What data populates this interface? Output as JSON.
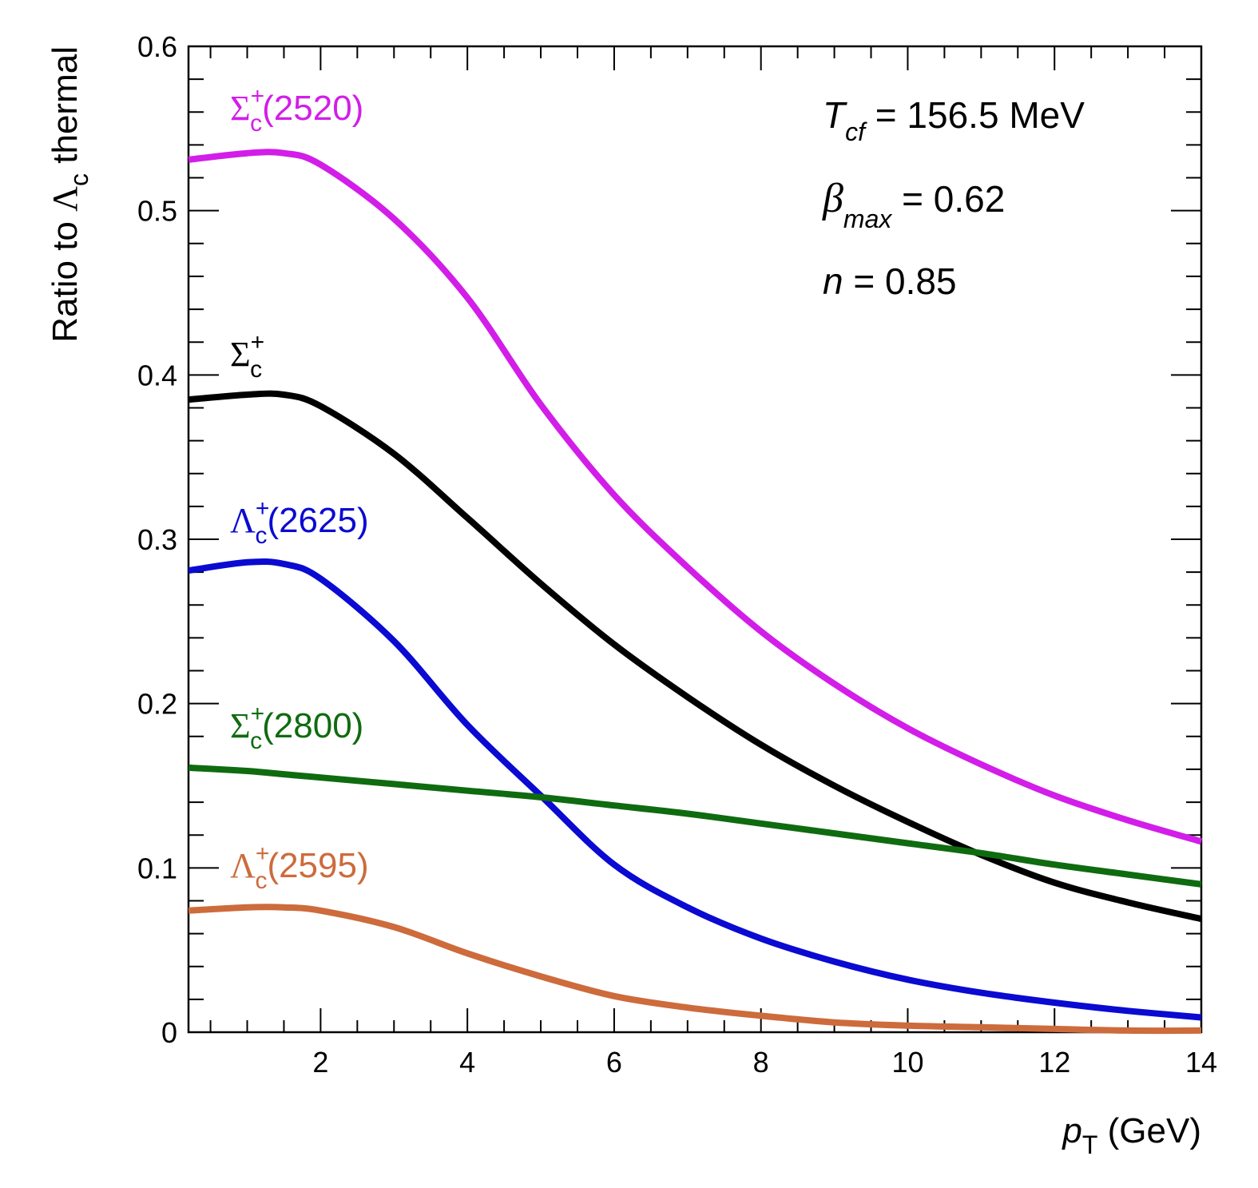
{
  "chart_data": {
    "type": "line",
    "xlabel_var": "p",
    "xlabel_sub": "T",
    "xlabel_unit": "(GeV)",
    "ylabel_text": "Ratio to ",
    "ylabel_symbol": "Λ",
    "ylabel_sub": "c",
    "ylabel_tail": " thermal",
    "xlim": [
      0.2,
      14
    ],
    "ylim": [
      0,
      0.6
    ],
    "x_ticks": [
      2,
      4,
      6,
      8,
      10,
      12,
      14
    ],
    "x_tick_labels": [
      "2",
      "4",
      "6",
      "8",
      "10",
      "12",
      "14"
    ],
    "y_ticks": [
      0,
      0.1,
      0.2,
      0.3,
      0.4,
      0.5,
      0.6
    ],
    "y_tick_labels": [
      "0",
      "0.1",
      "0.2",
      "0.3",
      "0.4",
      "0.5",
      "0.6"
    ],
    "grid": false,
    "legend": "labels placed beside curves at left",
    "parameters": [
      {
        "symbol": "T",
        "sub": "cf",
        "text": " = 156.5 MeV"
      },
      {
        "symbol": "β",
        "sub": "max",
        "text": " = 0.62"
      },
      {
        "symbol": "n",
        "sub": "",
        "text": " = 0.85"
      }
    ],
    "x": [
      0.2,
      1,
      1.5,
      2,
      3,
      4,
      5,
      6,
      7,
      8,
      9,
      10,
      11,
      12,
      13,
      14
    ],
    "series": [
      {
        "name": "Σ",
        "sub": "c",
        "sup": "+",
        "suffix": "(2520)",
        "color": "#d21ee8",
        "values": [
          0.531,
          0.535,
          0.535,
          0.528,
          0.495,
          0.447,
          0.382,
          0.327,
          0.283,
          0.244,
          0.212,
          0.185,
          0.163,
          0.144,
          0.129,
          0.116
        ]
      },
      {
        "name": "Σ",
        "sub": "c",
        "sup": "+",
        "suffix": "",
        "color": "#000000",
        "values": [
          0.385,
          0.388,
          0.388,
          0.381,
          0.352,
          0.313,
          0.273,
          0.236,
          0.204,
          0.175,
          0.15,
          0.128,
          0.108,
          0.091,
          0.079,
          0.069
        ]
      },
      {
        "name": "Λ",
        "sub": "c",
        "sup": "+",
        "suffix": "(2625)",
        "color": "#0a0ad2",
        "values": [
          0.281,
          0.286,
          0.285,
          0.276,
          0.238,
          0.187,
          0.144,
          0.102,
          0.076,
          0.057,
          0.043,
          0.032,
          0.024,
          0.018,
          0.013,
          0.009
        ]
      },
      {
        "name": "Σ",
        "sub": "c",
        "sup": "+",
        "suffix": "(2800)",
        "color": "#0f6b0f",
        "values": [
          0.161,
          0.159,
          0.157,
          0.155,
          0.151,
          0.147,
          0.143,
          0.138,
          0.133,
          0.127,
          0.121,
          0.115,
          0.109,
          0.102,
          0.096,
          0.09
        ]
      },
      {
        "name": "Λ",
        "sub": "c",
        "sup": "+",
        "suffix": "(2595)",
        "color": "#cd6b3c",
        "values": [
          0.074,
          0.076,
          0.076,
          0.074,
          0.064,
          0.048,
          0.034,
          0.022,
          0.015,
          0.01,
          0.006,
          0.004,
          0.003,
          0.002,
          0.001,
          0.001
        ]
      }
    ]
  }
}
